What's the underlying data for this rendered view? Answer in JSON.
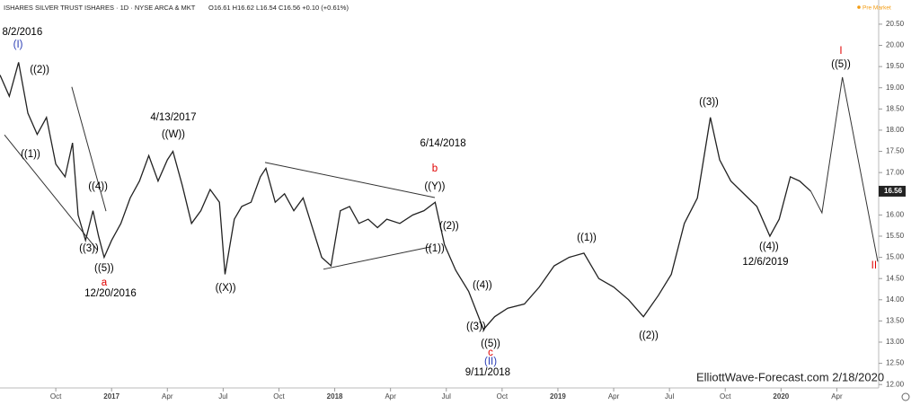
{
  "chart_data": {
    "type": "line",
    "title": "ISHARES SILVER TRUST ISHARES · 1D · NYSE ARCA & MKT",
    "subtitle": "O16.61 H16.62 L16.54 C16.56 +0.10 (+0.61%)",
    "status": "Pre Market",
    "last_price": 16.56,
    "footer": "ElliottWave-Forecast.com 2/18/2020",
    "xlim": [
      0,
      47.25
    ],
    "ylim": [
      11.92,
      21.07
    ],
    "xticks": [
      {
        "value": 3,
        "label": "Oct"
      },
      {
        "value": 6,
        "label": "2017"
      },
      {
        "value": 9,
        "label": "Apr"
      },
      {
        "value": 12,
        "label": "Jul"
      },
      {
        "value": 15,
        "label": "Oct"
      },
      {
        "value": 18,
        "label": "2018"
      },
      {
        "value": 21,
        "label": "Apr"
      },
      {
        "value": 24,
        "label": "Jul"
      },
      {
        "value": 27,
        "label": "Oct"
      },
      {
        "value": 30,
        "label": "2019"
      },
      {
        "value": 33,
        "label": "Apr"
      },
      {
        "value": 36,
        "label": "Jul"
      },
      {
        "value": 39,
        "label": "Oct"
      },
      {
        "value": 42,
        "label": "2020"
      },
      {
        "value": 45,
        "label": "Apr"
      }
    ],
    "yticks": [
      {
        "value": 12,
        "label": "12.00"
      },
      {
        "value": 12.5,
        "label": "12.50"
      },
      {
        "value": 13,
        "label": "13.00"
      },
      {
        "value": 13.5,
        "label": "13.50"
      },
      {
        "value": 14,
        "label": "14.00"
      },
      {
        "value": 14.5,
        "label": "14.50"
      },
      {
        "value": 15,
        "label": "15.00"
      },
      {
        "value": 15.5,
        "label": "15.50"
      },
      {
        "value": 16,
        "label": "16.00"
      },
      {
        "value": 16.5,
        "label": "16.50"
      },
      {
        "value": 17,
        "label": "17.00"
      },
      {
        "value": 17.5,
        "label": "17.50"
      },
      {
        "value": 18,
        "label": "18.00"
      },
      {
        "value": 18.5,
        "label": "18.50"
      },
      {
        "value": 19,
        "label": "19.00"
      },
      {
        "value": 19.5,
        "label": "19.50"
      },
      {
        "value": 20,
        "label": "20.00"
      },
      {
        "value": 20.5,
        "label": "20.50"
      }
    ],
    "series": [
      {
        "name": "Price",
        "color": "#222222",
        "x": [
          0,
          0.5,
          1.0,
          1.5,
          2.0,
          2.5,
          3.0,
          3.5,
          3.9,
          4.2,
          4.6,
          5.0,
          5.3,
          5.6,
          6.0,
          6.5,
          7.0,
          7.5,
          8.0,
          8.5,
          9.0,
          9.3,
          9.8,
          10.3,
          10.8,
          11.3,
          11.8,
          12.1,
          12.6,
          13.0,
          13.5,
          14.0,
          14.3,
          14.8,
          15.3,
          15.8,
          16.3,
          16.8,
          17.3,
          17.8,
          18.3,
          18.8,
          19.3,
          19.8,
          20.3,
          20.8,
          21.5,
          22.2,
          22.8,
          23.4,
          23.9,
          24.5,
          25.2,
          26.0,
          26.6,
          27.3,
          28.2,
          29.0,
          29.8,
          30.6,
          31.4,
          32.2,
          33.0,
          33.8,
          34.6,
          35.4,
          36.1,
          36.8,
          37.5,
          38.2,
          38.7,
          39.3,
          40.0,
          40.7,
          41.4,
          41.9,
          42.5,
          43.0,
          43.6
        ],
        "values": [
          19.3,
          18.8,
          19.6,
          18.4,
          17.9,
          18.3,
          17.2,
          16.9,
          17.7,
          16.0,
          15.4,
          16.1,
          15.5,
          15.0,
          15.4,
          15.8,
          16.4,
          16.8,
          17.4,
          16.8,
          17.3,
          17.5,
          16.7,
          15.8,
          16.1,
          16.6,
          16.3,
          14.6,
          15.9,
          16.2,
          16.3,
          16.9,
          17.1,
          16.3,
          16.5,
          16.1,
          16.4,
          15.7,
          15.0,
          14.8,
          16.1,
          16.2,
          15.8,
          15.9,
          15.7,
          15.9,
          15.8,
          16.0,
          16.1,
          16.3,
          15.3,
          14.7,
          14.2,
          13.3,
          13.6,
          13.8,
          13.9,
          14.3,
          14.8,
          15.0,
          15.1,
          14.5,
          14.3,
          14.0,
          13.6,
          14.1,
          14.6,
          15.8,
          16.4,
          18.3,
          17.3,
          16.8,
          16.5,
          16.2,
          15.5,
          15.9,
          16.9,
          16.8,
          16.56
        ]
      },
      {
        "name": "Projection",
        "color": "#333333",
        "x": [
          43.6,
          44.2,
          45.3,
          47.2
        ],
        "values": [
          16.56,
          16.05,
          19.25,
          14.9
        ]
      }
    ],
    "trendlines": [
      {
        "x": [
          0.24,
          5.22
        ],
        "values": [
          17.89,
          15.18
        ]
      },
      {
        "x": [
          3.86,
          5.7
        ],
        "values": [
          19.02,
          16.09
        ]
      },
      {
        "x": [
          14.25,
          23.38
        ],
        "values": [
          17.24,
          16.41
        ]
      },
      {
        "x": [
          17.39,
          23.19
        ],
        "values": [
          14.72,
          15.25
        ]
      }
    ],
    "annotations": [
      {
        "text": "8/2/2016",
        "x": 1.2,
        "y": 20.31,
        "color": "#000000"
      },
      {
        "text": "(I)",
        "x": 0.97,
        "y": 20.01,
        "color": "#2a3db5"
      },
      {
        "text": "((2))",
        "x": 2.13,
        "y": 19.42,
        "color": "#000000"
      },
      {
        "text": "((1))",
        "x": 1.64,
        "y": 17.43,
        "color": "#000000"
      },
      {
        "text": "((4))",
        "x": 5.27,
        "y": 16.67,
        "color": "#000000"
      },
      {
        "text": "((3))",
        "x": 4.78,
        "y": 15.2,
        "color": "#000000"
      },
      {
        "text": "((5))",
        "x": 5.6,
        "y": 14.74,
        "color": "#000000"
      },
      {
        "text": "a",
        "x": 5.6,
        "y": 14.4,
        "color": "#e00000"
      },
      {
        "text": "12/20/2016",
        "x": 5.94,
        "y": 14.14,
        "color": "#000000"
      },
      {
        "text": "4/13/2017",
        "x": 9.32,
        "y": 18.3,
        "color": "#000000"
      },
      {
        "text": "((W))",
        "x": 9.32,
        "y": 17.89,
        "color": "#000000"
      },
      {
        "text": "((X))",
        "x": 12.13,
        "y": 14.27,
        "color": "#000000"
      },
      {
        "text": "6/14/2018",
        "x": 23.82,
        "y": 17.68,
        "color": "#000000"
      },
      {
        "text": "b",
        "x": 23.38,
        "y": 17.09,
        "color": "#e00000"
      },
      {
        "text": "((Y))",
        "x": 23.38,
        "y": 16.67,
        "color": "#000000"
      },
      {
        "text": "((2))",
        "x": 24.15,
        "y": 15.73,
        "color": "#000000"
      },
      {
        "text": "((1))",
        "x": 23.38,
        "y": 15.2,
        "color": "#000000"
      },
      {
        "text": "((4))",
        "x": 25.94,
        "y": 14.33,
        "color": "#000000"
      },
      {
        "text": "((3))",
        "x": 25.6,
        "y": 13.36,
        "color": "#000000"
      },
      {
        "text": "((5))",
        "x": 26.38,
        "y": 12.96,
        "color": "#000000"
      },
      {
        "text": "c",
        "x": 26.38,
        "y": 12.75,
        "color": "#e00000"
      },
      {
        "text": "(II)",
        "x": 26.38,
        "y": 12.53,
        "color": "#2a3db5"
      },
      {
        "text": "9/11/2018",
        "x": 26.23,
        "y": 12.28,
        "color": "#000000"
      },
      {
        "text": "((1))",
        "x": 31.55,
        "y": 15.46,
        "color": "#000000"
      },
      {
        "text": "((2))",
        "x": 34.88,
        "y": 13.15,
        "color": "#000000"
      },
      {
        "text": "((3))",
        "x": 38.12,
        "y": 18.66,
        "color": "#000000"
      },
      {
        "text": "((4))",
        "x": 41.35,
        "y": 15.25,
        "color": "#000000"
      },
      {
        "text": "12/6/2019",
        "x": 41.16,
        "y": 14.89,
        "color": "#000000"
      },
      {
        "text": "I",
        "x": 45.22,
        "y": 19.86,
        "color": "#e00000"
      },
      {
        "text": "((5))",
        "x": 45.22,
        "y": 19.55,
        "color": "#000000"
      },
      {
        "text": "II",
        "x": 47.0,
        "y": 14.8,
        "color": "#e00000"
      }
    ]
  }
}
